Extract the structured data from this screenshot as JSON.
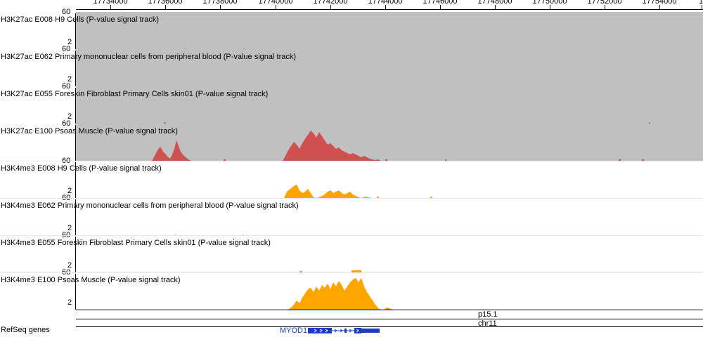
{
  "ruler": {
    "ticks": [
      "17734000",
      "17736000",
      "17738000",
      "17740000",
      "17742000",
      "17744000",
      "17746000",
      "17748000",
      "17750000",
      "17752000",
      "17754000",
      "1"
    ]
  },
  "tracks": [
    {
      "label": "H3K27ac E008 H9 Cells (P-value signal track)",
      "max": "60",
      "min": "2",
      "color": "#c0c0c0"
    },
    {
      "label": "H3K27ac E062 Primary mononuclear cells from peripheral blood (P-value signal track)",
      "max": "60",
      "min": "2",
      "color": "#c0c0c0"
    },
    {
      "label": "H3K27ac E055 Foreskin Fibroblast Primary Cells skin01 (P-value signal track)",
      "max": "60",
      "min": "2",
      "color": "#c0c0c0"
    },
    {
      "label": "H3K27ac E100 Psoas Muscle (P-value signal track)",
      "max": "60",
      "min": "",
      "color": "#c0c0c0"
    },
    {
      "label": "H3K4me3 E008 H9 Cells (P-value signal track)",
      "max": "60",
      "min": "2",
      "color": "#ffffff"
    },
    {
      "label": "H3K4me3 E062 Primary mononuclear cells from peripheral blood (P-value signal track)",
      "max": "60",
      "min": "2",
      "color": "#ffffff"
    },
    {
      "label": "H3K4me3 E055 Foreskin Fibroblast Primary Cells skin01 (P-value signal track)",
      "max": "60",
      "min": "2",
      "color": "#ffffff"
    },
    {
      "label": "H3K4me3 E100 Psoas Muscle (P-value signal track)",
      "max": "60",
      "min": "2",
      "color": "#ffffff"
    }
  ],
  "colors": {
    "h3k27ac_signal": "#d05050",
    "h3k4me3_signal": "#ffa500",
    "gene": "#1a3cc4"
  },
  "ideogram": {
    "band": "p15.1",
    "chrom": "chr11"
  },
  "genes": {
    "track_label": "RefSeq genes",
    "gene_name": "MYOD1"
  }
}
